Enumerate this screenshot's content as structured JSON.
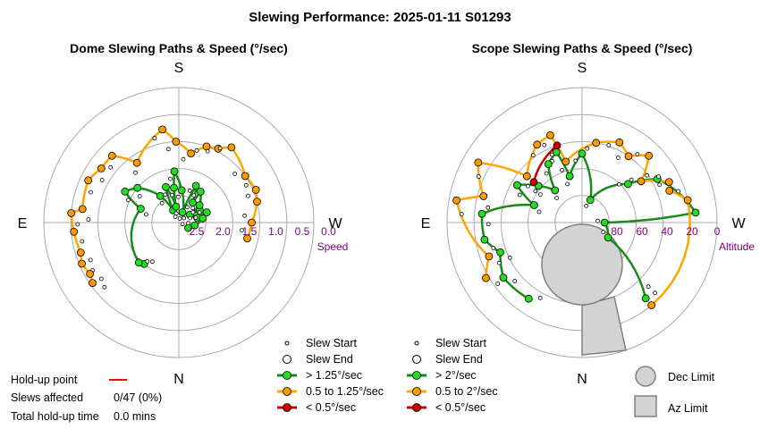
{
  "title": "Slewing Performance: 2025-01-11 S01293",
  "dome": {
    "title": "Dome Slewing Paths & Speed (°/sec)",
    "cardinals": {
      "top": "S",
      "bottom": "N",
      "left": "E",
      "right": "W"
    },
    "ticks": [
      "2.5",
      "2.0",
      "1.5",
      "1.0",
      "0.5",
      "0.0"
    ],
    "axis_label": "Speed"
  },
  "scope": {
    "title": "Scope Slewing Paths & Speed (°/sec)",
    "cardinals": {
      "top": "S",
      "bottom": "N",
      "left": "E",
      "right": "W"
    },
    "ticks": [
      "80",
      "60",
      "40",
      "20",
      "0"
    ],
    "axis_label": "Altitude"
  },
  "legend_dome": {
    "slew_start": "Slew Start",
    "slew_end": "Slew End",
    "fast": "> 1.25°/sec",
    "medium": "0.5 to 1.25°/sec",
    "slow": "< 0.5°/sec"
  },
  "legend_scope": {
    "slew_start": "Slew Start",
    "slew_end": "Slew End",
    "fast": "> 2°/sec",
    "medium": "0.5 to 2°/sec",
    "slow": "< 0.5°/sec"
  },
  "limits": {
    "dec": "Dec Limit",
    "az": "Az Limit"
  },
  "stats": {
    "holdup_label": "Hold-up point",
    "slews_label": "Slews affected",
    "slews_value": "0/47 (0%)",
    "total_label": "Total hold-up time",
    "total_value": "0.0 mins"
  },
  "colors": {
    "fast": "#1a8a1a",
    "fast_marker": "#22dd22",
    "medium": "#ffa500",
    "medium_marker": "#ff9900",
    "slow": "#cc0000",
    "holdup": "#ff0000",
    "ring": "#aaaaaa",
    "limit_fill": "#d3d3d3",
    "limit_edge": "#808080",
    "tick_text": "#800080"
  },
  "chart_data": [
    {
      "type": "scatter",
      "title": "Dome Slewing Paths & Speed (°/sec)",
      "projection": "polar",
      "radial_axis": {
        "label": "Speed",
        "unit": "°/sec",
        "center": 2.5,
        "edge": 0.0,
        "ticks": [
          2.5,
          2.0,
          1.5,
          1.0,
          0.5,
          0.0
        ]
      },
      "angular_axis": {
        "top": "S",
        "right": "W",
        "bottom": "N",
        "left": "E"
      },
      "series": [
        {
          "name": "> 1.25°/sec",
          "points": [
            {
              "az": 155,
              "speed": 2.25
            },
            {
              "az": 170,
              "speed": 2.2
            },
            {
              "az": 200,
              "speed": 2.3
            },
            {
              "az": 235,
              "speed": 2.25
            },
            {
              "az": 255,
              "speed": 2.15
            },
            {
              "az": 280,
              "speed": 2.2
            },
            {
              "az": 300,
              "speed": 2.3
            },
            {
              "az": 240,
              "speed": 2.05
            },
            {
              "az": 250,
              "speed": 1.95
            },
            {
              "az": 230,
              "speed": 2.0
            },
            {
              "az": 215,
              "speed": 2.05
            },
            {
              "az": 260,
              "speed": 2.05
            },
            {
              "az": 185,
              "speed": 1.9
            },
            {
              "az": 205,
              "speed": 1.75
            },
            {
              "az": 215,
              "speed": 1.8
            },
            {
              "az": 130,
              "speed": 1.5
            },
            {
              "az": 120,
              "speed": 1.35
            },
            {
              "az": 40,
              "speed": 1.5
            },
            {
              "az": 45,
              "speed": 1.45
            },
            {
              "az": 110,
              "speed": 1.75
            },
            {
              "az": 145,
              "speed": 1.9
            },
            {
              "az": 172,
              "speed": 1.85
            },
            {
              "az": 175,
              "speed": 1.55
            },
            {
              "az": 160,
              "speed": 1.8
            }
          ]
        },
        {
          "name": "0.5 to 1.25°/sec",
          "points": [
            {
              "az": 190,
              "speed": 1.2
            },
            {
              "az": 200,
              "speed": 1.0
            },
            {
              "az": 208,
              "speed": 0.95
            },
            {
              "az": 215,
              "speed": 0.8
            },
            {
              "az": 235,
              "speed": 1.0
            },
            {
              "az": 247,
              "speed": 0.95
            },
            {
              "az": 255,
              "speed": 1.0
            },
            {
              "az": 85,
              "speed": 0.55
            },
            {
              "az": 95,
              "speed": 0.5
            },
            {
              "az": 73,
              "speed": 0.6
            },
            {
              "az": 67,
              "speed": 0.55
            },
            {
              "az": 60,
              "speed": 0.6
            },
            {
              "az": 55,
              "speed": 0.55
            },
            {
              "az": 115,
              "speed": 0.65
            },
            {
              "az": 125,
              "speed": 0.75
            },
            {
              "az": 135,
              "speed": 0.75
            },
            {
              "az": 170,
              "speed": 0.75
            },
            {
              "az": 178,
              "speed": 1.0
            },
            {
              "az": 145,
              "speed": 1.15
            },
            {
              "az": 98,
              "speed": 0.7
            },
            {
              "az": 270,
              "speed": 1.15
            },
            {
              "az": 283,
              "speed": 1.2
            }
          ]
        },
        {
          "name": "< 0.5°/sec",
          "points": []
        }
      ]
    },
    {
      "type": "scatter",
      "title": "Scope Slewing Paths & Speed (°/sec)",
      "projection": "polar",
      "radial_axis": {
        "label": "Altitude",
        "unit": "°",
        "center": 90,
        "edge": 0,
        "ticks": [
          80,
          60,
          40,
          20,
          0
        ]
      },
      "angular_axis": {
        "top": "S",
        "right": "W",
        "bottom": "N",
        "left": "E"
      },
      "series": [
        {
          "name": "> 2°/sec",
          "points": [
            {
              "az": 180,
              "alt": 44
            },
            {
              "az": 160,
              "alt": 40
            },
            {
              "az": 150,
              "alt": 45
            },
            {
              "az": 130,
              "alt": 52
            },
            {
              "az": 120,
              "alt": 40
            },
            {
              "az": 95,
              "alt": 23
            },
            {
              "az": 80,
              "alt": 24
            },
            {
              "az": 70,
              "alt": 32
            },
            {
              "az": 55,
              "alt": 26
            },
            {
              "az": 110,
              "alt": 56
            },
            {
              "az": 140,
              "alt": 62
            },
            {
              "az": 165,
              "alt": 58
            },
            {
              "az": 265,
              "alt": 14
            },
            {
              "az": 240,
              "alt": 32
            },
            {
              "az": 230,
              "alt": 50
            },
            {
              "az": 200,
              "alt": 74
            },
            {
              "az": 270,
              "alt": 75
            },
            {
              "az": 320,
              "alt": 24
            },
            {
              "az": 35,
              "alt": 28
            },
            {
              "az": 300,
              "alt": 70
            }
          ]
        },
        {
          "name": "0.5 to 2°/sec",
          "points": [
            {
              "az": 150,
              "alt": 30
            },
            {
              "az": 160,
              "alt": 28
            },
            {
              "az": 190,
              "alt": 36
            },
            {
              "az": 205,
              "alt": 31
            },
            {
              "az": 215,
              "alt": 36
            },
            {
              "az": 225,
              "alt": 27
            },
            {
              "az": 245,
              "alt": 26
            },
            {
              "az": 258,
              "alt": 18
            },
            {
              "az": 250,
              "alt": 28
            },
            {
              "az": 235,
              "alt": 42
            },
            {
              "az": 120,
              "alt": 10
            },
            {
              "az": 100,
              "alt": 5
            },
            {
              "az": 105,
              "alt": 22
            },
            {
              "az": 70,
              "alt": 24
            },
            {
              "az": 60,
              "alt": 16
            },
            {
              "az": 130,
              "alt": 42
            },
            {
              "az": 165,
              "alt": 48
            },
            {
              "az": 320,
              "alt": 18
            }
          ]
        },
        {
          "name": "< 0.5°/sec",
          "points": [
            {
              "az": 162,
              "alt": 36
            },
            {
              "az": 130,
              "alt": 48
            }
          ]
        }
      ]
    }
  ]
}
